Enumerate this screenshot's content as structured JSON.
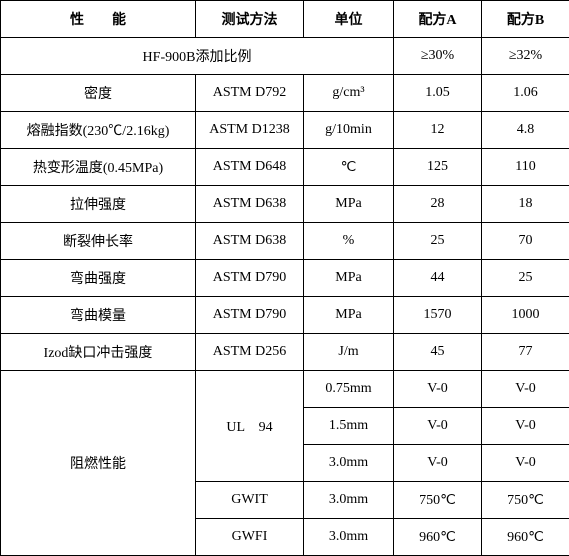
{
  "headers": {
    "property": "性　　能",
    "method": "测试方法",
    "unit": "单位",
    "formulaA": "配方A",
    "formulaB": "配方B"
  },
  "additive": {
    "label": "HF-900B添加比例",
    "a": "≥30%",
    "b": "≥32%"
  },
  "rows": [
    {
      "prop": "密度",
      "method": "ASTM D792",
      "unit_html": "g/cm³",
      "a": "1.05",
      "b": "1.06"
    },
    {
      "prop": "熔融指数(230℃/2.16kg)",
      "method": "ASTM D1238",
      "unit_html": "g/10min",
      "a": "12",
      "b": "4.8"
    },
    {
      "prop": "热变形温度(0.45MPa)",
      "method": "ASTM D648",
      "unit_html": "℃",
      "a": "125",
      "b": "110"
    },
    {
      "prop": "拉伸强度",
      "method": "ASTM D638",
      "unit_html": "MPa",
      "a": "28",
      "b": "18"
    },
    {
      "prop": "断裂伸长率",
      "method": "ASTM D638",
      "unit_html": "%",
      "a": "25",
      "b": "70"
    },
    {
      "prop": "弯曲强度",
      "method": "ASTM D790",
      "unit_html": "MPa",
      "a": "44",
      "b": "25"
    },
    {
      "prop": "弯曲模量",
      "method": "ASTM D790",
      "unit_html": "MPa",
      "a": "1570",
      "b": "1000"
    },
    {
      "prop": "Izod缺口冲击强度",
      "method": "ASTM D256",
      "unit_html": "J/m",
      "a": "45",
      "b": "77"
    }
  ],
  "flame": {
    "label": "阻燃性能",
    "ul94": "UL　94",
    "gwit": "GWIT",
    "gwfi": "GWFI",
    "ul_rows": [
      {
        "unit": "0.75mm",
        "a": "V-0",
        "b": "V-0"
      },
      {
        "unit": "1.5mm",
        "a": "V-0",
        "b": "V-0"
      },
      {
        "unit": "3.0mm",
        "a": "V-0",
        "b": "V-0"
      }
    ],
    "gwit_row": {
      "unit": "3.0mm",
      "a": "750℃",
      "b": "750℃"
    },
    "gwfi_row": {
      "unit": "3.0mm",
      "a": "960℃",
      "b": "960℃"
    }
  }
}
